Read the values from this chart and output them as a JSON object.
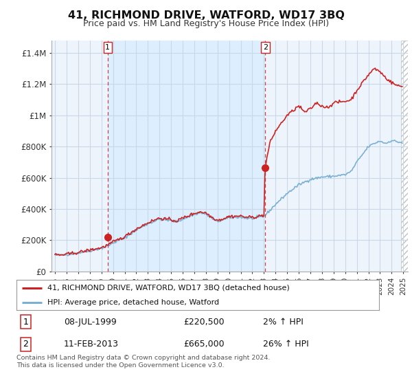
{
  "title": "41, RICHMOND DRIVE, WATFORD, WD17 3BQ",
  "subtitle": "Price paid vs. HM Land Registry's House Price Index (HPI)",
  "ylabel_ticks": [
    "£0",
    "£200K",
    "£400K",
    "£600K",
    "£800K",
    "£1M",
    "£1.2M",
    "£1.4M"
  ],
  "ytick_values": [
    0,
    200000,
    400000,
    600000,
    800000,
    1000000,
    1200000,
    1400000
  ],
  "ylim": [
    0,
    1480000
  ],
  "xlim_start": 1994.7,
  "xlim_end": 2025.4,
  "transaction1_x": 1999.54,
  "transaction1_y": 220500,
  "transaction2_x": 2013.12,
  "transaction2_y": 665000,
  "legend_line1": "41, RICHMOND DRIVE, WATFORD, WD17 3BQ (detached house)",
  "legend_line2": "HPI: Average price, detached house, Watford",
  "table_row1": [
    "1",
    "08-JUL-1999",
    "£220,500",
    "2% ↑ HPI"
  ],
  "table_row2": [
    "2",
    "11-FEB-2013",
    "£665,000",
    "26% ↑ HPI"
  ],
  "footer": "Contains HM Land Registry data © Crown copyright and database right 2024.\nThis data is licensed under the Open Government Licence v3.0.",
  "price_color": "#cc2222",
  "hpi_color": "#7ab0d4",
  "vline_color": "#cc2222",
  "shaded_bg": "#ddeeff",
  "plot_bg": "#eef4fb",
  "background_color": "#ffffff",
  "grid_color": "#c8d8e8",
  "hatch_color": "#c0c0c0"
}
